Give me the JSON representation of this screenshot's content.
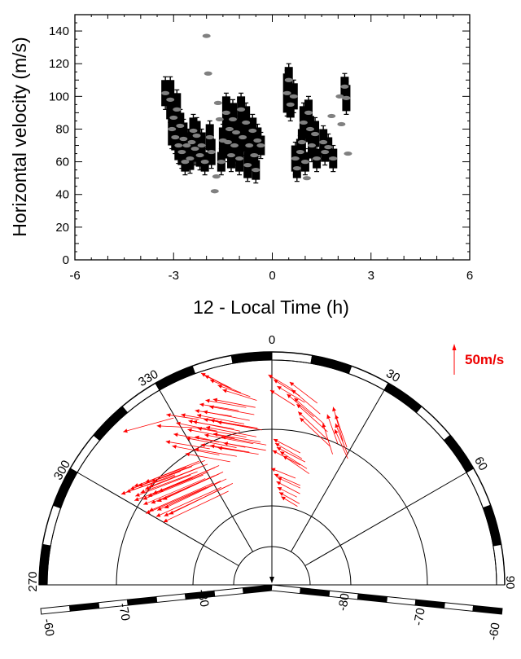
{
  "chart_data": [
    {
      "type": "scatter",
      "title": "",
      "xlabel": "12 - Local Time (h)",
      "ylabel": "Horizontal velocity (m/s)",
      "xlim": [
        -6,
        6
      ],
      "ylim": [
        0,
        150
      ],
      "xticks": [
        -6,
        -3,
        0,
        3,
        6
      ],
      "yticks": [
        0,
        20,
        40,
        60,
        80,
        100,
        120,
        140
      ],
      "grid": false,
      "series": [
        {
          "points": [
            {
              "x": -3.25,
              "y": 102,
              "err": 8
            },
            {
              "x": -3.1,
              "y": 98,
              "err": 12
            },
            {
              "x": -3.05,
              "y": 80,
              "err": 10
            },
            {
              "x": -3.0,
              "y": 87,
              "err": 10
            },
            {
              "x": -2.95,
              "y": 75,
              "err": 8
            },
            {
              "x": -2.9,
              "y": 92,
              "err": 10
            },
            {
              "x": -2.85,
              "y": 70,
              "err": 9
            },
            {
              "x": -2.8,
              "y": 82,
              "err": 8
            },
            {
              "x": -2.75,
              "y": 66,
              "err": 8
            },
            {
              "x": -2.7,
              "y": 74,
              "err": 10
            },
            {
              "x": -2.65,
              "y": 60,
              "err": 6
            },
            {
              "x": -2.6,
              "y": 70,
              "err": 8
            },
            {
              "x": -2.5,
              "y": 62,
              "err": 7
            },
            {
              "x": -2.45,
              "y": 72,
              "err": 8
            },
            {
              "x": -2.4,
              "y": 79,
              "err": 8
            },
            {
              "x": -2.35,
              "y": 68,
              "err": 8
            },
            {
              "x": -2.3,
              "y": 76,
              "err": 9
            },
            {
              "x": -2.2,
              "y": 64,
              "err": 7
            },
            {
              "x": -2.15,
              "y": 70,
              "err": 8
            },
            {
              "x": -2.05,
              "y": 60,
              "err": 6
            },
            {
              "x": -2.0,
              "y": 137,
              "err": 0
            },
            {
              "x": -1.95,
              "y": 114,
              "err": 0
            },
            {
              "x": -1.9,
              "y": 75,
              "err": 8
            },
            {
              "x": -1.85,
              "y": 66,
              "err": 8
            },
            {
              "x": -1.75,
              "y": 42,
              "err": 0
            },
            {
              "x": -1.7,
              "y": 51,
              "err": 0
            },
            {
              "x": -1.65,
              "y": 96,
              "err": 0
            },
            {
              "x": -1.6,
              "y": 86,
              "err": 0
            },
            {
              "x": -1.55,
              "y": 60,
              "err": 6
            },
            {
              "x": -1.5,
              "y": 73,
              "err": 8
            },
            {
              "x": -1.4,
              "y": 90,
              "err": 10
            },
            {
              "x": -1.35,
              "y": 72,
              "err": 10
            },
            {
              "x": -1.3,
              "y": 80,
              "err": 12
            },
            {
              "x": -1.25,
              "y": 64,
              "err": 8
            },
            {
              "x": -1.2,
              "y": 86,
              "err": 10
            },
            {
              "x": -1.15,
              "y": 70,
              "err": 10
            },
            {
              "x": -1.1,
              "y": 78,
              "err": 8
            },
            {
              "x": -1.0,
              "y": 62,
              "err": 8
            },
            {
              "x": -0.95,
              "y": 92,
              "err": 8
            },
            {
              "x": -0.9,
              "y": 75,
              "err": 9
            },
            {
              "x": -0.8,
              "y": 84,
              "err": 10
            },
            {
              "x": -0.75,
              "y": 58,
              "err": 8
            },
            {
              "x": -0.7,
              "y": 70,
              "err": 10
            },
            {
              "x": -0.6,
              "y": 79,
              "err": 8
            },
            {
              "x": -0.55,
              "y": 64,
              "err": 8
            },
            {
              "x": -0.5,
              "y": 55,
              "err": 6
            },
            {
              "x": -0.45,
              "y": 73,
              "err": 8
            },
            {
              "x": -0.35,
              "y": 70,
              "err": 6
            },
            {
              "x": 0.45,
              "y": 102,
              "err": 12
            },
            {
              "x": 0.5,
              "y": 110,
              "err": 8
            },
            {
              "x": 0.55,
              "y": 95,
              "err": 8
            },
            {
              "x": 0.65,
              "y": 100,
              "err": 8
            },
            {
              "x": 0.7,
              "y": 62,
              "err": 8
            },
            {
              "x": 0.75,
              "y": 56,
              "err": 6
            },
            {
              "x": 0.85,
              "y": 66,
              "err": 8
            },
            {
              "x": 0.9,
              "y": 72,
              "err": 8
            },
            {
              "x": 0.95,
              "y": 84,
              "err": 10
            },
            {
              "x": 1.0,
              "y": 60,
              "err": 6
            },
            {
              "x": 1.05,
              "y": 50,
              "err": 0
            },
            {
              "x": 1.1,
              "y": 90,
              "err": 8
            },
            {
              "x": 1.15,
              "y": 80,
              "err": 8
            },
            {
              "x": 1.2,
              "y": 70,
              "err": 8
            },
            {
              "x": 1.3,
              "y": 77,
              "err": 8
            },
            {
              "x": 1.35,
              "y": 62,
              "err": 6
            },
            {
              "x": 1.55,
              "y": 72,
              "err": 8
            },
            {
              "x": 1.6,
              "y": 66,
              "err": 6
            },
            {
              "x": 1.7,
              "y": 69,
              "err": 6
            },
            {
              "x": 1.8,
              "y": 88,
              "err": 0
            },
            {
              "x": 1.85,
              "y": 62,
              "err": 6
            },
            {
              "x": 2.05,
              "y": 100,
              "err": 0
            },
            {
              "x": 2.1,
              "y": 83,
              "err": 0
            },
            {
              "x": 2.2,
              "y": 106,
              "err": 6
            },
            {
              "x": 2.25,
              "y": 99,
              "err": 8
            },
            {
              "x": 2.3,
              "y": 65,
              "err": 0
            }
          ]
        }
      ]
    },
    {
      "type": "polar",
      "title": "",
      "scale_label": "50m/s",
      "angle_labels": [
        "270",
        "300",
        "330",
        "0",
        "30",
        "60",
        "90"
      ],
      "lat_labels_left": [
        "-60",
        "-70",
        "-80"
      ],
      "lat_labels_right": [
        "-80",
        "-70",
        "-60"
      ],
      "angle_range": [
        270,
        90
      ],
      "lat_rings": [
        -60,
        -70,
        -80,
        -90
      ],
      "colors": {
        "vectors": "#ff0000",
        "scale_label": "#ee0000"
      },
      "vectors": [
        {
          "ang": 341.5,
          "r": 27.4,
          "dx": 36,
          "dy": 18
        },
        {
          "ang": 342.2,
          "r": 27.0,
          "dx": 33,
          "dy": 16
        },
        {
          "ang": 343.2,
          "r": 26.3,
          "dx": 38,
          "dy": 16
        },
        {
          "ang": 344.8,
          "r": 25.4,
          "dx": 40,
          "dy": 14
        },
        {
          "ang": 345.8,
          "r": 24.7,
          "dx": 42,
          "dy": 13
        },
        {
          "ang": 336.2,
          "r": 23.4,
          "dx": 45,
          "dy": 7
        },
        {
          "ang": 338.2,
          "r": 23.9,
          "dx": 48,
          "dy": 8
        },
        {
          "ang": 340.2,
          "r": 24.1,
          "dx": 50,
          "dy": 9
        },
        {
          "ang": 342.4,
          "r": 23.9,
          "dx": 52,
          "dy": 10
        },
        {
          "ang": 340.7,
          "r": 23.2,
          "dx": 55,
          "dy": 10
        },
        {
          "ang": 338.4,
          "r": 22.9,
          "dx": 57,
          "dy": 11
        },
        {
          "ang": 336.2,
          "r": 22.8,
          "dx": 58,
          "dy": 11
        },
        {
          "ang": 333.0,
          "r": 22.6,
          "dx": 56,
          "dy": 10
        },
        {
          "ang": 334.2,
          "r": 22.3,
          "dx": 58,
          "dy": 12
        },
        {
          "ang": 337.6,
          "r": 22.0,
          "dx": 60,
          "dy": 11
        },
        {
          "ang": 339.5,
          "r": 21.6,
          "dx": 58,
          "dy": 10
        },
        {
          "ang": 341.5,
          "r": 21.1,
          "dx": 55,
          "dy": 10
        },
        {
          "ang": 337.3,
          "r": 21.0,
          "dx": 62,
          "dy": 12
        },
        {
          "ang": 334.6,
          "r": 21.3,
          "dx": 60,
          "dy": 11
        },
        {
          "ang": 331.5,
          "r": 21.7,
          "dx": 58,
          "dy": 11
        },
        {
          "ang": 329.7,
          "r": 20.9,
          "dx": 62,
          "dy": 12
        },
        {
          "ang": 332.5,
          "r": 20.5,
          "dx": 62,
          "dy": 13
        },
        {
          "ang": 335.8,
          "r": 20.2,
          "dx": 60,
          "dy": 11
        },
        {
          "ang": 338.8,
          "r": 19.9,
          "dx": 58,
          "dy": 10
        },
        {
          "ang": 341.2,
          "r": 19.2,
          "dx": 55,
          "dy": 10
        },
        {
          "ang": 341.2,
          "r": 18.4,
          "dx": 52,
          "dy": 9
        },
        {
          "ang": 338.5,
          "r": 18.1,
          "dx": 50,
          "dy": 8
        },
        {
          "ang": 336.1,
          "r": 18.7,
          "dx": 48,
          "dy": 8
        },
        {
          "ang": 333.1,
          "r": 19.3,
          "dx": 50,
          "dy": 8
        },
        {
          "ang": 330.3,
          "r": 19.2,
          "dx": 52,
          "dy": 9
        },
        {
          "ang": 326.6,
          "r": 19.3,
          "dx": 55,
          "dy": 10
        },
        {
          "ang": 324.3,
          "r": 21.0,
          "dx": 58,
          "dy": 11
        },
        {
          "ang": 326.9,
          "r": 22.1,
          "dx": 56,
          "dy": 10
        },
        {
          "ang": 323.5,
          "r": 21.9,
          "dx": 54,
          "dy": 9
        },
        {
          "ang": 329.4,
          "r": 23.1,
          "dx": 50,
          "dy": 10
        },
        {
          "ang": 331.9,
          "r": 23.7,
          "dx": 46,
          "dy": 8
        },
        {
          "ang": 328.2,
          "r": 24.6,
          "dx": 40,
          "dy": 6
        },
        {
          "ang": 324.1,
          "r": 24.1,
          "dx": 60,
          "dy": 3
        },
        {
          "ang": 315.8,
          "r": 26.2,
          "dx": 62,
          "dy": -17
        },
        {
          "ang": 302.5,
          "r": 21.2,
          "dx": 60,
          "dy": -20
        },
        {
          "ang": 304.0,
          "r": 21.0,
          "dx": 62,
          "dy": -22
        },
        {
          "ang": 305.5,
          "r": 20.8,
          "dx": 64,
          "dy": -24
        },
        {
          "ang": 301.0,
          "r": 21.6,
          "dx": 66,
          "dy": -24
        },
        {
          "ang": 303.0,
          "r": 20.0,
          "dx": 68,
          "dy": -26
        },
        {
          "ang": 305.0,
          "r": 19.7,
          "dx": 70,
          "dy": -26
        },
        {
          "ang": 307.0,
          "r": 19.5,
          "dx": 70,
          "dy": -28
        },
        {
          "ang": 308.5,
          "r": 19.3,
          "dx": 72,
          "dy": -28
        },
        {
          "ang": 301.5,
          "r": 19.8,
          "dx": 72,
          "dy": -28
        },
        {
          "ang": 303.5,
          "r": 19.0,
          "dx": 74,
          "dy": -30
        },
        {
          "ang": 305.5,
          "r": 18.7,
          "dx": 74,
          "dy": -30
        },
        {
          "ang": 307.5,
          "r": 18.4,
          "dx": 76,
          "dy": -32
        },
        {
          "ang": 309.5,
          "r": 18.0,
          "dx": 74,
          "dy": -32
        },
        {
          "ang": 302.0,
          "r": 18.6,
          "dx": 76,
          "dy": -32
        },
        {
          "ang": 304.0,
          "r": 17.9,
          "dx": 78,
          "dy": -34
        },
        {
          "ang": 306.0,
          "r": 17.4,
          "dx": 76,
          "dy": -34
        },
        {
          "ang": 308.0,
          "r": 17.0,
          "dx": 74,
          "dy": -34
        },
        {
          "ang": 301.0,
          "r": 17.6,
          "dx": 78,
          "dy": -34
        },
        {
          "ang": 303.0,
          "r": 16.8,
          "dx": 78,
          "dy": -36
        },
        {
          "ang": 305.5,
          "r": 16.2,
          "dx": 76,
          "dy": -36
        },
        {
          "ang": 300.5,
          "r": 16.5,
          "dx": 80,
          "dy": -36
        },
        {
          "ang": 302.5,
          "r": 15.7,
          "dx": 80,
          "dy": -38
        },
        {
          "ang": 304.5,
          "r": 15.3,
          "dx": 78,
          "dy": -38
        },
        {
          "ang": 300.0,
          "r": 15.4,
          "dx": 80,
          "dy": -38
        },
        {
          "ang": 306.5,
          "r": 20.4,
          "dx": 66,
          "dy": -24
        },
        {
          "ang": 309.0,
          "r": 20.0,
          "dx": 66,
          "dy": -26
        },
        {
          "ang": 310.5,
          "r": 19.5,
          "dx": 66,
          "dy": -26
        },
        {
          "ang": 299.5,
          "r": 17.8,
          "dx": 74,
          "dy": -32
        },
        {
          "ang": 359.0,
          "r": 25.8,
          "dx": 30,
          "dy": 18
        },
        {
          "ang": 0.5,
          "r": 25.2,
          "dx": 32,
          "dy": 20
        },
        {
          "ang": 1.5,
          "r": 24.4,
          "dx": 34,
          "dy": 20
        },
        {
          "ang": 359.5,
          "r": 23.9,
          "dx": 30,
          "dy": 19
        },
        {
          "ang": 5.0,
          "r": 25.0,
          "dx": 34,
          "dy": 26
        },
        {
          "ang": 5.8,
          "r": 24.1,
          "dx": 35,
          "dy": 30
        },
        {
          "ang": 6.8,
          "r": 23.1,
          "dx": 37,
          "dy": 32
        },
        {
          "ang": 7.8,
          "r": 22.4,
          "dx": 38,
          "dy": 34
        },
        {
          "ang": 8.6,
          "r": 21.5,
          "dx": 38,
          "dy": 36
        },
        {
          "ang": 4.5,
          "r": 23.5,
          "dx": 33,
          "dy": 28
        },
        {
          "ang": 9.5,
          "r": 20.8,
          "dx": 37,
          "dy": 35
        },
        {
          "ang": 19.0,
          "r": 23.1,
          "dx": 12,
          "dy": 42
        },
        {
          "ang": 20.5,
          "r": 22.3,
          "dx": 14,
          "dy": 40
        },
        {
          "ang": 18.0,
          "r": 22.0,
          "dx": 13,
          "dy": 36
        },
        {
          "ang": 21.5,
          "r": 21.3,
          "dx": 15,
          "dy": 38
        },
        {
          "ang": 22.0,
          "r": 20.6,
          "dx": 16,
          "dy": 36
        },
        {
          "ang": 17.5,
          "r": 20.8,
          "dx": 12,
          "dy": 38
        },
        {
          "ang": 0.6,
          "r": 17.9,
          "dx": 33,
          "dy": 17
        },
        {
          "ang": 1.3,
          "r": 17.4,
          "dx": 33,
          "dy": 19
        },
        {
          "ang": 2.0,
          "r": 16.9,
          "dx": 35,
          "dy": 18
        },
        {
          "ang": 3.5,
          "r": 16.4,
          "dx": 33,
          "dy": 21
        },
        {
          "ang": 5.0,
          "r": 15.9,
          "dx": 32,
          "dy": 22
        },
        {
          "ang": 0.3,
          "r": 16.5,
          "dx": 34,
          "dy": 18
        },
        {
          "ang": 359.6,
          "r": 14.3,
          "dx": 30,
          "dy": 12
        },
        {
          "ang": 1.2,
          "r": 13.6,
          "dx": 32,
          "dy": 14
        },
        {
          "ang": 2.5,
          "r": 12.7,
          "dx": 29,
          "dy": 15
        },
        {
          "ang": 3.2,
          "r": 12.0,
          "dx": 24,
          "dy": 12
        },
        {
          "ang": 4.5,
          "r": 11.4,
          "dx": 25,
          "dy": 14
        },
        {
          "ang": 6.0,
          "r": 10.9,
          "dx": 20,
          "dy": 12
        },
        {
          "ang": 3.0,
          "r": 13.2,
          "dx": 28,
          "dy": 13
        }
      ]
    }
  ]
}
